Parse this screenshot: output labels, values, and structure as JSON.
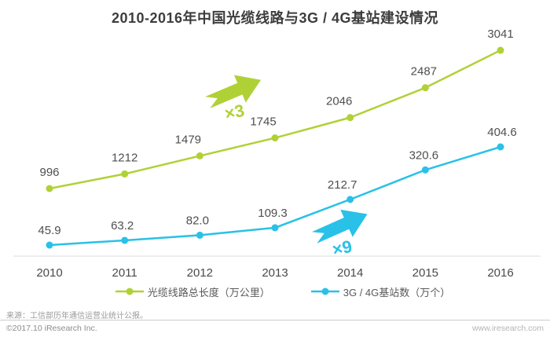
{
  "title": "2010-2016年中国光缆线路与3G / 4G基站建设情况",
  "chart_data": {
    "type": "line",
    "categories": [
      "2010",
      "2011",
      "2012",
      "2013",
      "2014",
      "2015",
      "2016"
    ],
    "series": [
      {
        "name": "光缆线路总长度（万公里）",
        "values": [
          996,
          1212,
          1479,
          1745,
          2046,
          2487,
          3041
        ],
        "labels": [
          "996",
          "1212",
          "1479",
          "1745",
          "2046",
          "2487",
          "3041"
        ],
        "color": "#b0d136",
        "annotation": "×3"
      },
      {
        "name": "3G / 4G基站数（万个）",
        "values": [
          45.9,
          63.2,
          82.0,
          109.3,
          212.7,
          320.6,
          404.6
        ],
        "labels": [
          "45.9",
          "63.2",
          "82.0",
          "109.3",
          "212.7",
          "320.6",
          "404.6"
        ],
        "color": "#29c1e7",
        "annotation": "×9"
      }
    ],
    "xlabel": "",
    "ylabel": "",
    "grid": false,
    "axes_hidden": true,
    "legend_position": "bottom",
    "point_labels_shown": true
  },
  "footer": {
    "source": "来源：工信部历年通信运营业统计公报。",
    "copyright": "©2017.10 iResearch Inc.",
    "website": "www.iresearch.com"
  }
}
